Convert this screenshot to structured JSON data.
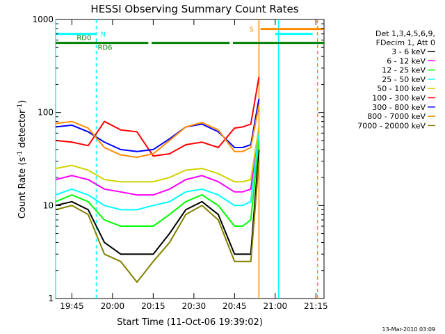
{
  "chart_data": {
    "type": "line",
    "title": "HESSI Observing Summary Count Rates",
    "xlabel": "Start Time (11-Oct-06 19:39:02)",
    "ylabel": "Count Rate (s",
    "ylabel_sup": "-1",
    "ylabel_tail": " detector",
    "ylabel_sup2": "-1",
    "ylabel_close": ")",
    "yscale": "log",
    "xlim": [
      19.65,
      21.3
    ],
    "ylim": [
      1,
      1000
    ],
    "x_ticks": [
      {
        "value": 19.75,
        "label": "19:45"
      },
      {
        "value": 20.0,
        "label": "20:00"
      },
      {
        "value": 20.25,
        "label": "20:15"
      },
      {
        "value": 20.5,
        "label": "20:30"
      },
      {
        "value": 20.75,
        "label": "20:45"
      },
      {
        "value": 21.0,
        "label": "21:00"
      },
      {
        "value": 21.25,
        "label": "21:15"
      }
    ],
    "y_ticks": [
      {
        "value": 1,
        "label": "1"
      },
      {
        "value": 10,
        "label": "10"
      },
      {
        "value": 100,
        "label": "100"
      },
      {
        "value": 1000,
        "label": "1000"
      }
    ],
    "legend_header": [
      "Det 1,3,4,5,6,9,",
      "FDecim 1, Att 0"
    ],
    "legend_position": "right",
    "series": [
      {
        "name": "3 - 6 keV",
        "color": "#000000",
        "x": [
          19.65,
          19.75,
          19.85,
          19.95,
          20.05,
          20.15,
          20.25,
          20.35,
          20.45,
          20.55,
          20.65,
          20.75,
          20.8,
          20.85,
          20.9
        ],
        "values": [
          10,
          11,
          9,
          4,
          3,
          3,
          3,
          5,
          9,
          11,
          8,
          3,
          3,
          3,
          40
        ]
      },
      {
        "name": "6 - 12 keV",
        "color": "#ff00ff",
        "x": [
          19.65,
          19.75,
          19.85,
          19.95,
          20.05,
          20.15,
          20.25,
          20.35,
          20.45,
          20.55,
          20.65,
          20.75,
          20.8,
          20.85,
          20.9
        ],
        "values": [
          19,
          21,
          19,
          15,
          14,
          13,
          13,
          15,
          19,
          21,
          18,
          14,
          14,
          15,
          70
        ]
      },
      {
        "name": "12 - 25 keV",
        "color": "#00ff00",
        "x": [
          19.65,
          19.75,
          19.85,
          19.95,
          20.05,
          20.15,
          20.25,
          20.35,
          20.45,
          20.55,
          20.65,
          20.75,
          20.8,
          20.85,
          20.9
        ],
        "values": [
          11,
          13,
          11,
          7,
          6,
          6,
          6,
          8,
          11,
          13,
          10,
          6,
          6,
          7,
          50
        ]
      },
      {
        "name": "25 - 50 keV",
        "color": "#00ffff",
        "x": [
          19.65,
          19.75,
          19.85,
          19.95,
          20.05,
          20.15,
          20.25,
          20.35,
          20.45,
          20.55,
          20.65,
          20.75,
          20.8,
          20.85,
          20.9
        ],
        "values": [
          13,
          15,
          13,
          10,
          9,
          9,
          10,
          11,
          14,
          15,
          13,
          10,
          10,
          11,
          60
        ]
      },
      {
        "name": "50 - 100 keV",
        "color": "#d2d200",
        "x": [
          19.65,
          19.75,
          19.85,
          19.95,
          20.05,
          20.15,
          20.25,
          20.35,
          20.45,
          20.55,
          20.65,
          20.75,
          20.8,
          20.85,
          20.9
        ],
        "values": [
          25,
          27,
          24,
          19,
          18,
          18,
          18,
          20,
          24,
          25,
          22,
          18,
          18,
          19,
          70
        ]
      },
      {
        "name": "100 - 300 keV",
        "color": "#ff0000",
        "x": [
          19.65,
          19.75,
          19.85,
          19.95,
          20.05,
          20.15,
          20.25,
          20.35,
          20.45,
          20.55,
          20.65,
          20.75,
          20.8,
          20.85,
          20.9
        ],
        "values": [
          50,
          48,
          44,
          80,
          65,
          62,
          34,
          36,
          45,
          48,
          42,
          68,
          70,
          75,
          240
        ]
      },
      {
        "name": "300 - 800 keV",
        "color": "#0000ff",
        "x": [
          19.65,
          19.75,
          19.85,
          19.95,
          20.05,
          20.15,
          20.25,
          20.35,
          20.45,
          20.55,
          20.65,
          20.75,
          20.8,
          20.85,
          20.9
        ],
        "values": [
          70,
          73,
          62,
          48,
          40,
          38,
          40,
          52,
          70,
          75,
          62,
          42,
          42,
          45,
          140
        ]
      },
      {
        "name": "800 - 7000 keV",
        "color": "#ff8c00",
        "x": [
          19.65,
          19.75,
          19.85,
          19.95,
          20.05,
          20.15,
          20.25,
          20.35,
          20.45,
          20.55,
          20.65,
          20.75,
          20.8,
          20.85,
          20.9
        ],
        "values": [
          76,
          80,
          68,
          42,
          35,
          33,
          36,
          50,
          70,
          78,
          65,
          38,
          38,
          42,
          120
        ]
      },
      {
        "name": "7000 - 20000 keV",
        "color": "#808000",
        "x": [
          19.65,
          19.75,
          19.85,
          19.95,
          20.05,
          20.15,
          20.25,
          20.35,
          20.45,
          20.55,
          20.65,
          20.75,
          20.8,
          20.85,
          20.9
        ],
        "values": [
          9,
          10,
          8,
          3,
          2.5,
          1.5,
          2.5,
          4,
          8,
          10,
          7,
          2.5,
          2.5,
          2.5,
          30
        ]
      }
    ],
    "flags": [
      {
        "label": "N",
        "color": "#00ffff",
        "segments": [
          [
            19.65,
            19.9
          ],
          [
            21.0,
            21.23
          ]
        ],
        "level": 700
      },
      {
        "label": "RD0",
        "color": "#008000",
        "segments": [],
        "level": 600
      },
      {
        "label": "RD6",
        "color": "#008000",
        "segments": [
          [
            19.65,
            20.22
          ],
          [
            20.24,
            20.72
          ],
          [
            20.74,
            21.3
          ]
        ],
        "level": 560
      },
      {
        "label": "S",
        "color": "#ff8c00",
        "segments": [
          [
            20.91,
            21.3
          ]
        ],
        "level": 790
      }
    ],
    "vlines": [
      {
        "x": 19.65,
        "color": "#00ffff",
        "dash": false
      },
      {
        "x": 19.9,
        "color": "#00ffff",
        "dash": true
      },
      {
        "x": 20.9,
        "color": "#ff8c00",
        "dash": false
      },
      {
        "x": 21.02,
        "color": "#00ffff",
        "dash": false
      },
      {
        "x": 21.26,
        "color": "#ff8c00",
        "dash": true
      }
    ],
    "footer_date": "13-Mar-2010 03:09"
  }
}
